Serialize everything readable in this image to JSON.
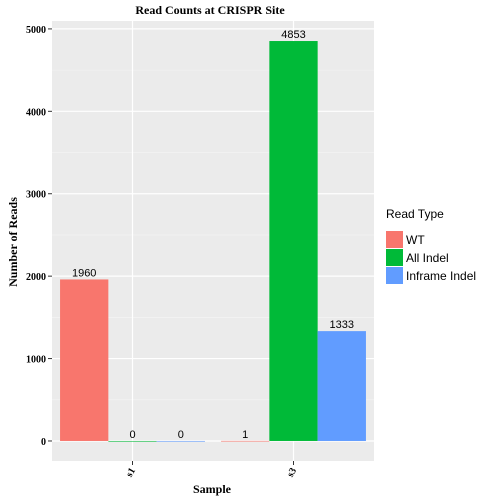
{
  "chart_data": {
    "type": "bar",
    "title": "Read Counts at CRISPR Site",
    "xlabel": "Sample",
    "ylabel": "Number of Reads",
    "categories": [
      "s1",
      "s3"
    ],
    "series": [
      {
        "name": "WT",
        "values": [
          1960,
          1
        ],
        "color": "#F8766D"
      },
      {
        "name": "All Indel",
        "values": [
          0,
          4853
        ],
        "color": "#00BA38"
      },
      {
        "name": "Inframe Indel",
        "values": [
          0,
          1333
        ],
        "color": "#619CFF"
      }
    ],
    "data_labels": [
      [
        "1960",
        "0",
        "0"
      ],
      [
        "1",
        "4853",
        "1333"
      ]
    ],
    "yticks": [
      0,
      1000,
      2000,
      3000,
      4000,
      5000
    ],
    "ylim": [
      -243,
      5096
    ],
    "legend": {
      "title": "Read Type",
      "position": "right"
    },
    "background": "#EBEBEB",
    "grid": true
  }
}
